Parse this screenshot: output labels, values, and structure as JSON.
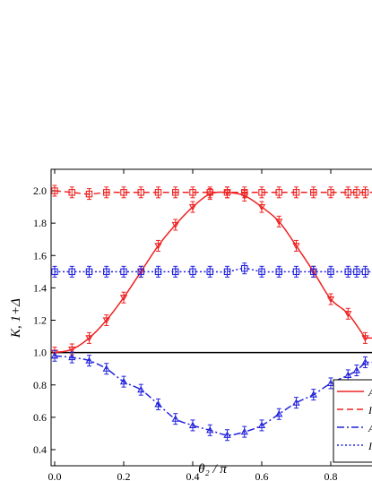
{
  "chart_data": {
    "type": "line",
    "xlabel": "θ₂ / π",
    "ylabel": "K, 1+Δ",
    "xlim": [
      -0.01,
      0.92
    ],
    "ylim": [
      0.32,
      2.12
    ],
    "x_ticks": [
      "0.0",
      "0.2",
      "0.4",
      "0.6",
      "0.8"
    ],
    "x_tick_values": [
      0.0,
      0.2,
      0.4,
      0.6,
      0.8
    ],
    "y_ticks": [
      "0.4",
      "0.6",
      "0.8",
      "1.0",
      "1.2",
      "1.4",
      "1.6",
      "1.8",
      "2.0"
    ],
    "y_tick_values": [
      0.4,
      0.6,
      0.8,
      1.0,
      1.2,
      1.4,
      1.6,
      1.8,
      2.0
    ],
    "reference_line": {
      "y": 1.0,
      "color": "#000000"
    },
    "legend": {
      "position": "bottom-right",
      "entries": [
        "A",
        "I",
        "A",
        "I"
      ]
    },
    "grid": false,
    "series": [
      {
        "name": "A",
        "color": "#ee2222",
        "line_style": "solid",
        "marker": "triangle-down",
        "x": [
          0.0,
          0.05,
          0.1,
          0.15,
          0.2,
          0.25,
          0.3,
          0.35,
          0.4,
          0.45,
          0.5,
          0.55,
          0.6,
          0.65,
          0.7,
          0.75,
          0.8,
          0.85,
          0.9
        ],
        "values": [
          1.0,
          1.02,
          1.09,
          1.2,
          1.34,
          1.5,
          1.66,
          1.79,
          1.9,
          1.98,
          1.99,
          1.97,
          1.9,
          1.81,
          1.66,
          1.5,
          1.33,
          1.24,
          1.09
        ]
      },
      {
        "name": "I",
        "color": "#ee2222",
        "line_style": "dashed",
        "marker": "square",
        "x": [
          0.0,
          0.05,
          0.1,
          0.15,
          0.2,
          0.25,
          0.3,
          0.35,
          0.4,
          0.45,
          0.5,
          0.55,
          0.6,
          0.65,
          0.7,
          0.75,
          0.8,
          0.85,
          0.875,
          0.9
        ],
        "values": [
          2.0,
          1.99,
          1.98,
          1.99,
          1.99,
          1.99,
          1.99,
          1.99,
          1.99,
          1.99,
          1.99,
          1.99,
          1.99,
          1.99,
          1.99,
          1.99,
          1.99,
          1.99,
          1.99,
          1.99
        ]
      },
      {
        "name": "A",
        "color": "#2222dd",
        "line_style": "dash-dot",
        "marker": "triangle-up",
        "x": [
          0.0,
          0.05,
          0.1,
          0.15,
          0.2,
          0.25,
          0.3,
          0.35,
          0.4,
          0.45,
          0.5,
          0.55,
          0.6,
          0.65,
          0.7,
          0.75,
          0.8,
          0.85,
          0.875,
          0.9
        ],
        "values": [
          0.98,
          0.97,
          0.95,
          0.9,
          0.82,
          0.77,
          0.68,
          0.59,
          0.55,
          0.52,
          0.49,
          0.51,
          0.55,
          0.62,
          0.69,
          0.74,
          0.81,
          0.86,
          0.89,
          0.94
        ]
      },
      {
        "name": "I",
        "color": "#2222dd",
        "line_style": "dotted",
        "marker": "square",
        "x": [
          0.0,
          0.05,
          0.1,
          0.15,
          0.2,
          0.25,
          0.3,
          0.35,
          0.4,
          0.45,
          0.5,
          0.55,
          0.6,
          0.65,
          0.7,
          0.75,
          0.8,
          0.85,
          0.875,
          0.9
        ],
        "values": [
          1.5,
          1.5,
          1.5,
          1.5,
          1.5,
          1.5,
          1.5,
          1.5,
          1.5,
          1.5,
          1.5,
          1.52,
          1.5,
          1.5,
          1.5,
          1.5,
          1.5,
          1.5,
          1.5,
          1.5
        ]
      }
    ]
  }
}
